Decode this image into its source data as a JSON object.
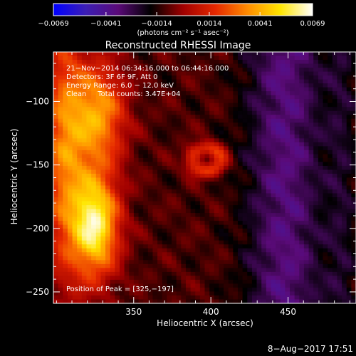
{
  "chart_data": {
    "type": "heatmap",
    "title": "Reconstructed RHESSI Image",
    "xlabel": "Heliocentric X (arcsec)",
    "ylabel": "Heliocentric Y (arcsec)",
    "xlim": [
      298,
      494
    ],
    "ylim": [
      -259,
      -61
    ],
    "xticks": [
      350,
      400,
      450
    ],
    "yticks": [
      -100,
      -150,
      -200,
      -250
    ],
    "colorbar": {
      "min": -0.0069,
      "max": 0.0069,
      "tick_values": [
        -0.0069,
        -0.0041,
        -0.0014,
        0.0014,
        0.0041,
        0.0069
      ],
      "tick_labels": [
        "−0.0069",
        "−0.0041",
        "−0.0014",
        "0.0014",
        "0.0041",
        "0.0069"
      ],
      "units_label": "(photons cm⁻² s⁻¹ asec⁻²)",
      "colors": [
        "#0000ff",
        "#3c1eb4",
        "#5a0a78",
        "#000000",
        "#a00000",
        "#e62800",
        "#ff8c00",
        "#ffe600",
        "#ffffff"
      ]
    },
    "annotations": [
      "21−Nov−2014 06:34:16.000 to 06:44:16.000",
      "Detectors: 3F 6F 9F, Att 0",
      "Energy Range: 6.0 − 12.0 keV",
      "Clean     Total counts: 3.47E+04",
      "Position of Peak = [325,−197]"
    ],
    "peak_position": [
      325,
      -197
    ],
    "timestamp": "8−Aug−2017 17:51"
  }
}
